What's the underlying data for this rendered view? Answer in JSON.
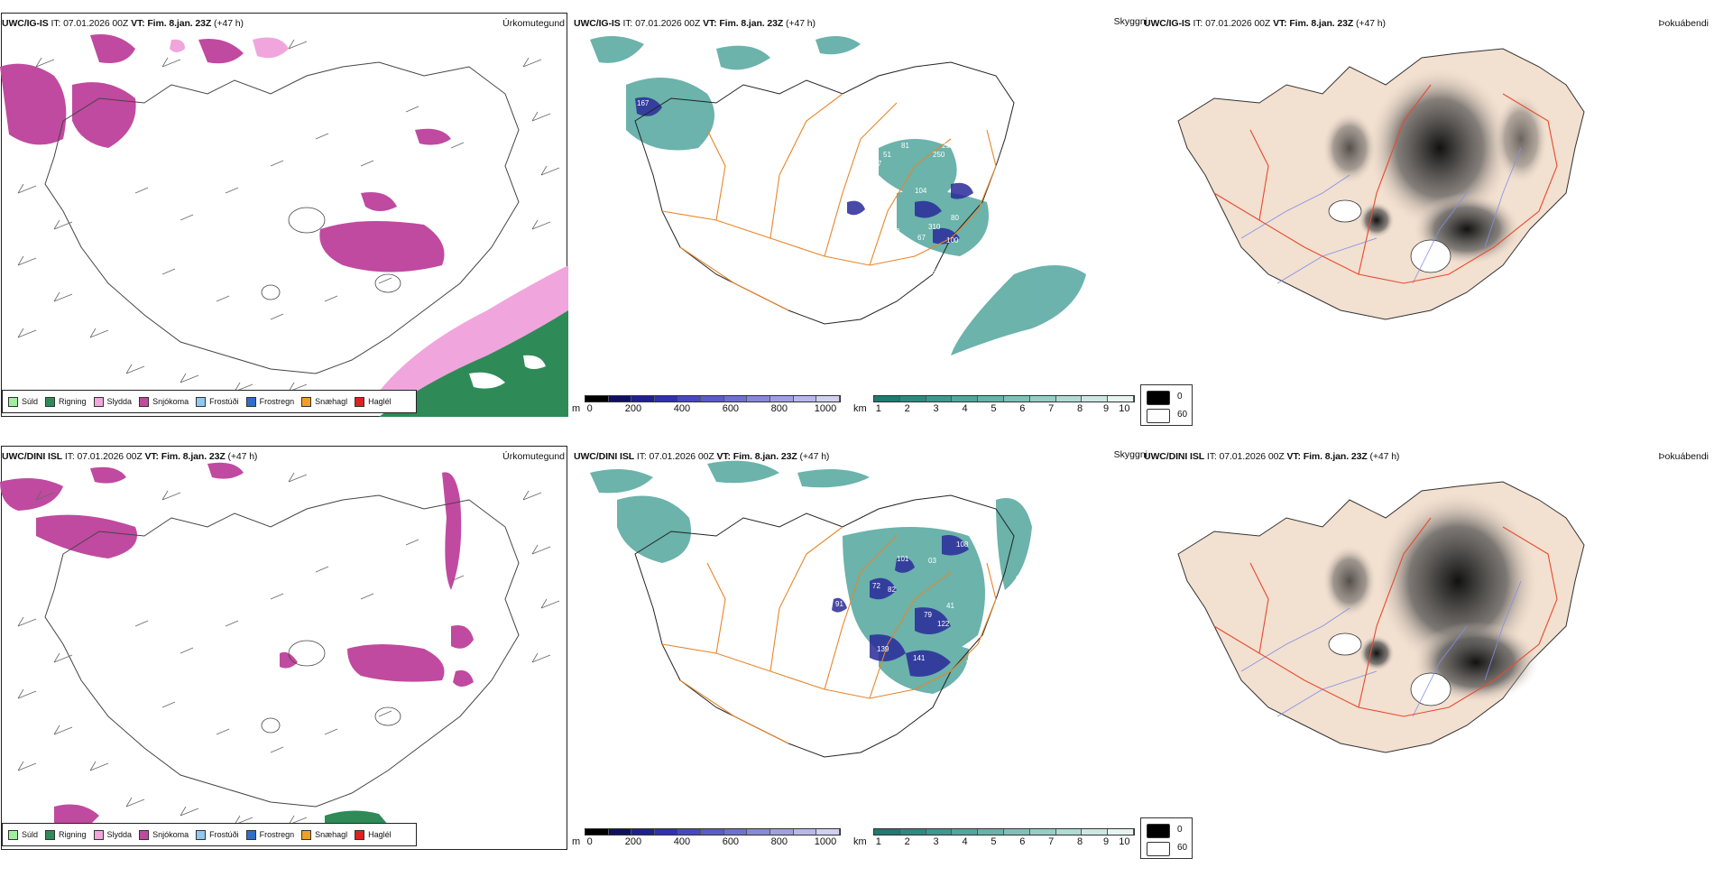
{
  "rows": [
    {
      "model": "UWC/IG-IS",
      "it_label": "IT:",
      "it_value": "07.01.2026 00Z",
      "vt_label": "VT:",
      "vt_value": "Fim. 8.jan. 23Z",
      "lead": "(+47 h)",
      "tag_precip": "Úrkomutegund",
      "tag_vis": "Skyggni",
      "tag_fog": "Þokuábendi",
      "cloud_labels": [
        "167",
        "298",
        "250",
        "104",
        "310",
        "122",
        "146",
        "67",
        "80",
        "100",
        "635",
        "127",
        "51",
        "81",
        "12"
      ]
    },
    {
      "model": "UWC/DINI ISL",
      "it_label": "IT:",
      "it_value": "07.01.2026 00Z",
      "vt_label": "VT:",
      "vt_value": "Fim. 8.jan. 23Z",
      "lead": "(+47 h)",
      "tag_precip": "Úrkomutegund",
      "tag_vis": "Skyggni",
      "tag_fog": "Þokuábendi",
      "cloud_labels": [
        "976",
        "108",
        "99",
        "97",
        "101",
        "72",
        "82",
        "03",
        "79",
        "41",
        "122",
        "139",
        "141",
        "91",
        "63",
        "11"
      ]
    }
  ],
  "precip_legend": [
    {
      "label": "Súld",
      "color": "#9ef09e"
    },
    {
      "label": "Rigning",
      "color": "#2e8b57"
    },
    {
      "label": "Slydda",
      "color": "#f0a6dc"
    },
    {
      "label": "Snjókoma",
      "color": "#c04aa0"
    },
    {
      "label": "Frostúði",
      "color": "#8fc8f0"
    },
    {
      "label": "Frostregn",
      "color": "#2f6fc8"
    },
    {
      "label": "Snæhagl",
      "color": "#f0a020"
    },
    {
      "label": "Haglél",
      "color": "#e02020"
    }
  ],
  "cloudbase_bar": {
    "unit": "m",
    "ticks": [
      "0",
      "200",
      "400",
      "600",
      "800",
      "1000"
    ],
    "colors": [
      "#000000",
      "#101060",
      "#202090",
      "#3030b0",
      "#4848c0",
      "#5c5cc8",
      "#7070d0",
      "#8888d8",
      "#a0a0e0",
      "#b8b8e8",
      "#d0d0f0"
    ]
  },
  "visibility_bar": {
    "unit": "km",
    "ticks": [
      "1",
      "2",
      "3",
      "4",
      "5",
      "6",
      "7",
      "8",
      "9",
      "10"
    ],
    "colors": [
      "#1f7a70",
      "#2d8a80",
      "#3e988e",
      "#52a69c",
      "#68b3aa",
      "#80c0b8",
      "#98cdc6",
      "#b2dad4",
      "#cce7e2",
      "#e6f3f1"
    ]
  },
  "fog_legend": {
    "max_label": "0",
    "min_label": "60"
  },
  "colors": {
    "snow": "#c04aa0",
    "sleet": "#f0a6dc",
    "rain": "#2e8b57",
    "teal": "#3a9a90",
    "blue": "#2a2a9a",
    "roads": "#e8862a",
    "land": "#f2e0d0",
    "red_road": "#e84a30"
  }
}
